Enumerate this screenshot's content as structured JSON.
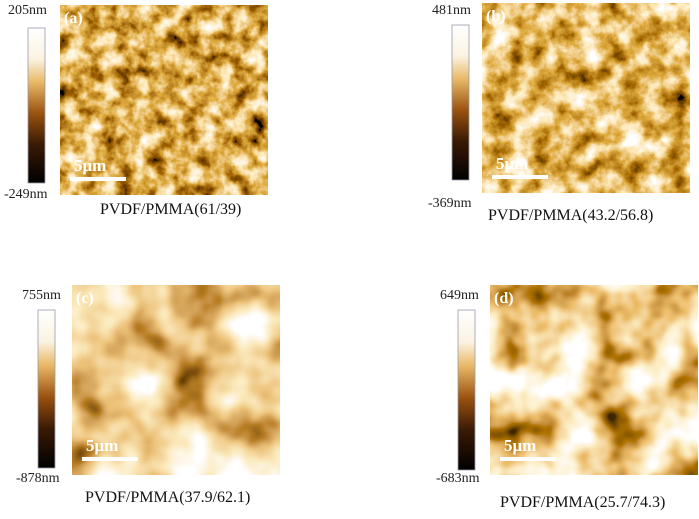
{
  "panels": [
    {
      "label": "(a)",
      "max": "205nm",
      "min": "-249nm",
      "scale": "5μm",
      "caption": "PVDF/PMMA(61/39)"
    },
    {
      "label": "(b)",
      "max": "481nm",
      "min": "-369nm",
      "scale": "5μm",
      "caption": "PVDF/PMMA(43.2/56.8)"
    },
    {
      "label": "(c)",
      "max": "755nm",
      "min": "-878nm",
      "scale": "5μm",
      "caption": "PVDF/PMMA(37.9/62.1)"
    },
    {
      "label": "(d)",
      "max": "649nm",
      "min": "-683nm",
      "scale": "5μm",
      "caption": "PVDF/PMMA(25.7/74.3)"
    }
  ]
}
